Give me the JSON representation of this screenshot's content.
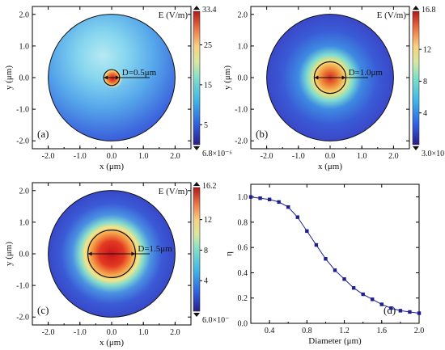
{
  "chart_data": [
    {
      "panel": "(a)",
      "type": "heatmap",
      "title": "",
      "xlabel": "x (μm)",
      "ylabel": "y (μm)",
      "xlim": [
        -2.5,
        2.5
      ],
      "ylim": [
        -2.25,
        2.25
      ],
      "xticks": [
        "-2.0",
        "-1.0",
        "0.0",
        "1.0",
        "2.0"
      ],
      "yticks": [
        "2.0",
        "1.0",
        "0.0",
        "-1.0",
        "-2.0"
      ],
      "colorbar_title": "E (V/m)",
      "colorbar_max": "33.4",
      "colorbar_min": "6.8×10⁻⁶",
      "colorbar_ticks": [
        "25",
        "15",
        "5"
      ],
      "diameter_label": "D=0.5μm",
      "diameter_um": 0.5,
      "domain_radius_um": 2.0
    },
    {
      "panel": "(b)",
      "type": "heatmap",
      "title": "",
      "xlabel": "x (μm)",
      "ylabel": "y (μm)",
      "xlim": [
        -2.5,
        2.5
      ],
      "ylim": [
        -2.25,
        2.25
      ],
      "xticks": [
        "-2.0",
        "-1.0",
        "0.0",
        "1.0",
        "2.0"
      ],
      "yticks": [
        "2.0",
        "1.0",
        "0.0",
        "-1.0",
        "-2.0"
      ],
      "colorbar_title": "E (V/m)",
      "colorbar_max": "16.8",
      "colorbar_min": "3.0×10⁻³",
      "colorbar_ticks": [
        "12",
        "8",
        "4"
      ],
      "diameter_label": "D=1.0μm",
      "diameter_um": 1.0,
      "domain_radius_um": 2.0
    },
    {
      "panel": "(c)",
      "type": "heatmap",
      "title": "",
      "xlabel": "x (μm)",
      "ylabel": "y (μm)",
      "xlim": [
        -2.5,
        2.5
      ],
      "ylim": [
        -2.25,
        2.25
      ],
      "xticks": [
        "-2.0",
        "-1.0",
        "0.0",
        "1.0",
        "2.0"
      ],
      "yticks": [
        "2.0",
        "1.0",
        "0.0",
        "-1.0",
        "-2.0"
      ],
      "colorbar_title": "E (V/m)",
      "colorbar_max": "16.2",
      "colorbar_min": "6.0×10⁻",
      "colorbar_ticks": [
        "12",
        "8",
        "4"
      ],
      "diameter_label": "D=1.5μm",
      "diameter_um": 1.5,
      "domain_radius_um": 2.0
    },
    {
      "panel": "(d)",
      "type": "line",
      "title": "",
      "xlabel": "Diameter (μm)",
      "ylabel": "η",
      "xlim": [
        0.2,
        2.0
      ],
      "ylim": [
        0.0,
        1.1
      ],
      "xticks": [
        "0.4",
        "0.8",
        "1.2",
        "1.6",
        "2.0"
      ],
      "yticks": [
        "1.0",
        "0.8",
        "0.6",
        "0.4",
        "0.2",
        "0.0"
      ],
      "x": [
        0.2,
        0.3,
        0.4,
        0.5,
        0.6,
        0.7,
        0.8,
        0.9,
        1.0,
        1.1,
        1.2,
        1.3,
        1.4,
        1.5,
        1.6,
        1.7,
        1.8,
        1.9,
        2.0
      ],
      "series": [
        {
          "values": [
            1.0,
            0.99,
            0.98,
            0.96,
            0.92,
            0.84,
            0.73,
            0.62,
            0.51,
            0.42,
            0.35,
            0.28,
            0.23,
            0.19,
            0.15,
            0.12,
            0.1,
            0.09,
            0.08
          ]
        }
      ],
      "color": "#1f1f8f"
    }
  ]
}
